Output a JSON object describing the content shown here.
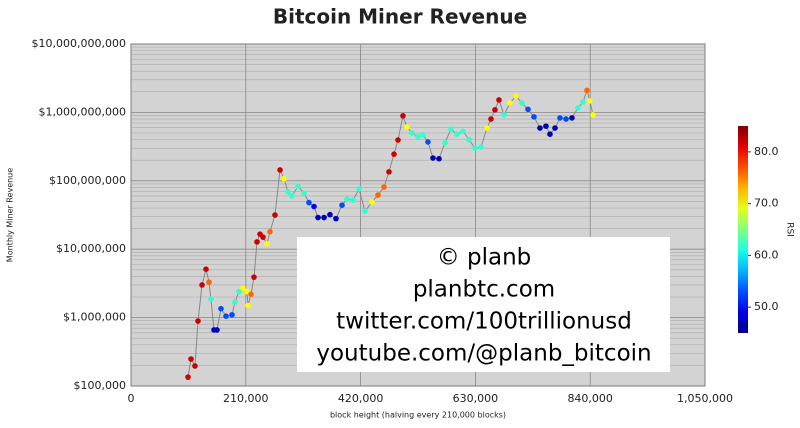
{
  "chart_data": {
    "type": "scatter",
    "title": "Bitcoin Miner Revenue",
    "x_label": "block height (halving every 210,000 blocks)",
    "y_label": "Monthly Miner Revenue",
    "log_y": true,
    "grid": true,
    "line_color": "#888888",
    "xlim": [
      0,
      1050000
    ],
    "xticks": [
      0,
      {
        "value": 210000,
        "label": "210,000"
      },
      {
        "value": 420000,
        "label": "420,000"
      },
      {
        "value": 630000,
        "label": "630,000"
      },
      {
        "value": 840000,
        "label": "840,000"
      },
      {
        "value": 1050000,
        "label": "1,050,000"
      }
    ],
    "ylim": [
      100000,
      10000000000
    ],
    "yticks": [
      {
        "value": 100000,
        "label": "$100,000"
      },
      {
        "value": 1000000,
        "label": "$1,000,000"
      },
      {
        "value": 10000000,
        "label": "$10,000,000"
      },
      {
        "value": 100000000,
        "label": "$100,000,000"
      },
      {
        "value": 1000000000,
        "label": "$1,000,000,000"
      },
      {
        "value": 10000000000,
        "label": "$10,000,000,000"
      }
    ],
    "color_scale": {
      "label": "RSI",
      "colormap": "jet",
      "lim": [
        45,
        85
      ],
      "ticks": [
        {
          "value": 50,
          "label": "50.0"
        },
        {
          "value": 60,
          "label": "60.0"
        },
        {
          "value": 70,
          "label": "70.0"
        },
        {
          "value": 80,
          "label": "80.0"
        }
      ]
    },
    "annotation": [
      "© planb",
      "planbtc.com",
      "twitter.com/100trillionusd",
      "youtube.com/@planb_bitcoin"
    ],
    "x": [
      104300,
      109800,
      117000,
      122600,
      129900,
      137200,
      142700,
      146300,
      151800,
      157300,
      164600,
      173800,
      184800,
      190200,
      197600,
      204900,
      212200,
      214000,
      219500,
      225000,
      230500,
      236000,
      241500,
      248800,
      254300,
      263400,
      272600,
      279900,
      287200,
      294500,
      305500,
      316500,
      325600,
      334800,
      342100,
      353100,
      364000,
      375000,
      386000,
      395100,
      406100,
      417100,
      428000,
      440900,
      451800,
      462800,
      471900,
      481100,
      488400,
      497500,
      504800,
      514000,
      525000,
      534100,
      543200,
      552400,
      563400,
      574400,
      585300,
      596300,
      607300,
      618300,
      629200,
      640200,
      651200,
      658500,
      665800,
      673100,
      682300,
      693300,
      704200,
      715200,
      726200,
      737200,
      748100,
      759100,
      766400,
      775600,
      784700,
      795700,
      806700,
      817600,
      826800,
      834100,
      839600,
      845100
    ],
    "values": [
      135000,
      248000,
      196000,
      891000,
      3000000,
      5100000,
      3300000,
      1860000,
      660000,
      660000,
      1350000,
      1050000,
      1100000,
      1700000,
      2400000,
      2700000,
      2400000,
      1500000,
      2200000,
      3900000,
      12800000,
      16600000,
      15000000,
      12000000,
      18000000,
      31600000,
      144000000,
      107000000,
      69000000,
      60000000,
      83000000,
      66000000,
      48000000,
      42000000,
      29000000,
      29000000,
      32000000,
      28000000,
      44000000,
      54000000,
      52000000,
      76000000,
      36000000,
      49000000,
      62000000,
      81000000,
      135000000,
      245000000,
      395000000,
      890000000,
      610000000,
      500000000,
      440000000,
      470000000,
      370000000,
      215000000,
      210000000,
      360000000,
      570000000,
      480000000,
      530000000,
      400000000,
      300000000,
      310000000,
      590000000,
      800000000,
      1090000000,
      1520000000,
      920000000,
      1370000000,
      1740000000,
      1370000000,
      1110000000,
      860000000,
      590000000,
      630000000,
      480000000,
      590000000,
      830000000,
      800000000,
      830000000,
      1160000000,
      1420000000,
      2100000000,
      1470000000,
      920000000
    ],
    "rsi": [
      82,
      82,
      82,
      82,
      82,
      82,
      76,
      62,
      47,
      47,
      53,
      53,
      53,
      62,
      62,
      70,
      70,
      70,
      76,
      82,
      82,
      82,
      82,
      70,
      76,
      82,
      82,
      70,
      62,
      62,
      62,
      62,
      53,
      50,
      47,
      47,
      47,
      47,
      53,
      62,
      62,
      62,
      62,
      70,
      76,
      76,
      82,
      82,
      82,
      82,
      70,
      62,
      62,
      62,
      53,
      47,
      47,
      62,
      62,
      62,
      62,
      62,
      62,
      62,
      70,
      82,
      82,
      82,
      62,
      70,
      70,
      62,
      53,
      53,
      47,
      47,
      47,
      47,
      53,
      53,
      47,
      62,
      62,
      76,
      70,
      70
    ]
  }
}
